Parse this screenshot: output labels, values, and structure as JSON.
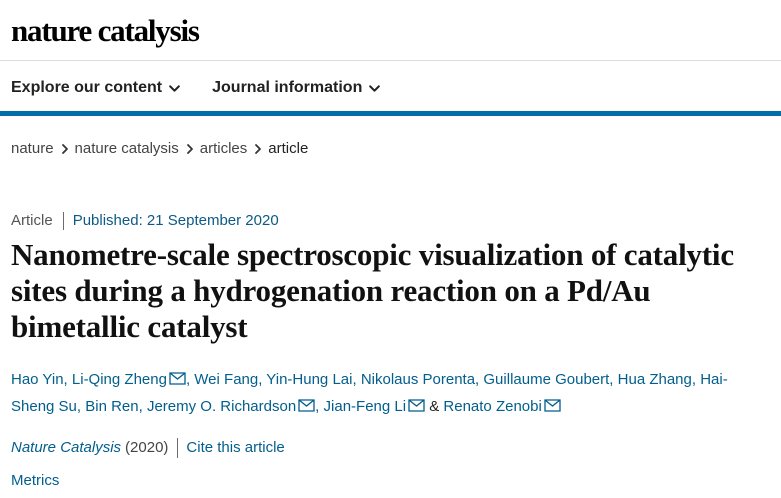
{
  "header": {
    "logo_text": "nature catalysis"
  },
  "nav": {
    "items": [
      {
        "label": "Explore our content"
      },
      {
        "label": "Journal information"
      }
    ],
    "accent_color": "#0070a8"
  },
  "breadcrumb": {
    "items": [
      "nature",
      "nature catalysis",
      "articles",
      "article"
    ]
  },
  "article": {
    "type": "Article",
    "published": "Published: 21 September 2020",
    "title": "Nanometre-scale spectroscopic visualization of catalytic sites during a hydrogenation reaction on a Pd/Au bimetallic catalyst",
    "authors": [
      {
        "name": "Hao Yin",
        "sep": ", ",
        "email": false
      },
      {
        "name": "Li-Qing Zheng",
        "sep": ", ",
        "email": true
      },
      {
        "name": "Wei Fang",
        "sep": ", ",
        "email": false
      },
      {
        "name": "Yin-Hung Lai",
        "sep": ", ",
        "email": false
      },
      {
        "name": "Nikolaus Porenta",
        "sep": ", ",
        "email": false
      },
      {
        "name": "Guillaume Goubert",
        "sep": ", ",
        "email": false
      },
      {
        "name": "Hua Zhang",
        "sep": ", ",
        "email": false
      },
      {
        "name": "Hai-Sheng Su",
        "sep": ", ",
        "email": false
      },
      {
        "name": "Bin Ren",
        "sep": ", ",
        "email": false
      },
      {
        "name": "Jeremy O. Richardson",
        "sep": ", ",
        "email": true
      },
      {
        "name": "Jian-Feng Li",
        "sep": " & ",
        "email": true
      },
      {
        "name": "Renato Zenobi",
        "sep": "",
        "email": true
      }
    ],
    "journal": "Nature Catalysis",
    "year": "(2020)",
    "cite_label": "Cite this article",
    "metrics_label": "Metrics"
  },
  "icons": {
    "nav_dropdown": "chevron-down-icon",
    "breadcrumb_separator": "chevron-right-icon",
    "author_contact": "mail-icon"
  },
  "colors": {
    "link": "#025e8d",
    "nav_rule": "#0070a8",
    "text": "#222222"
  }
}
